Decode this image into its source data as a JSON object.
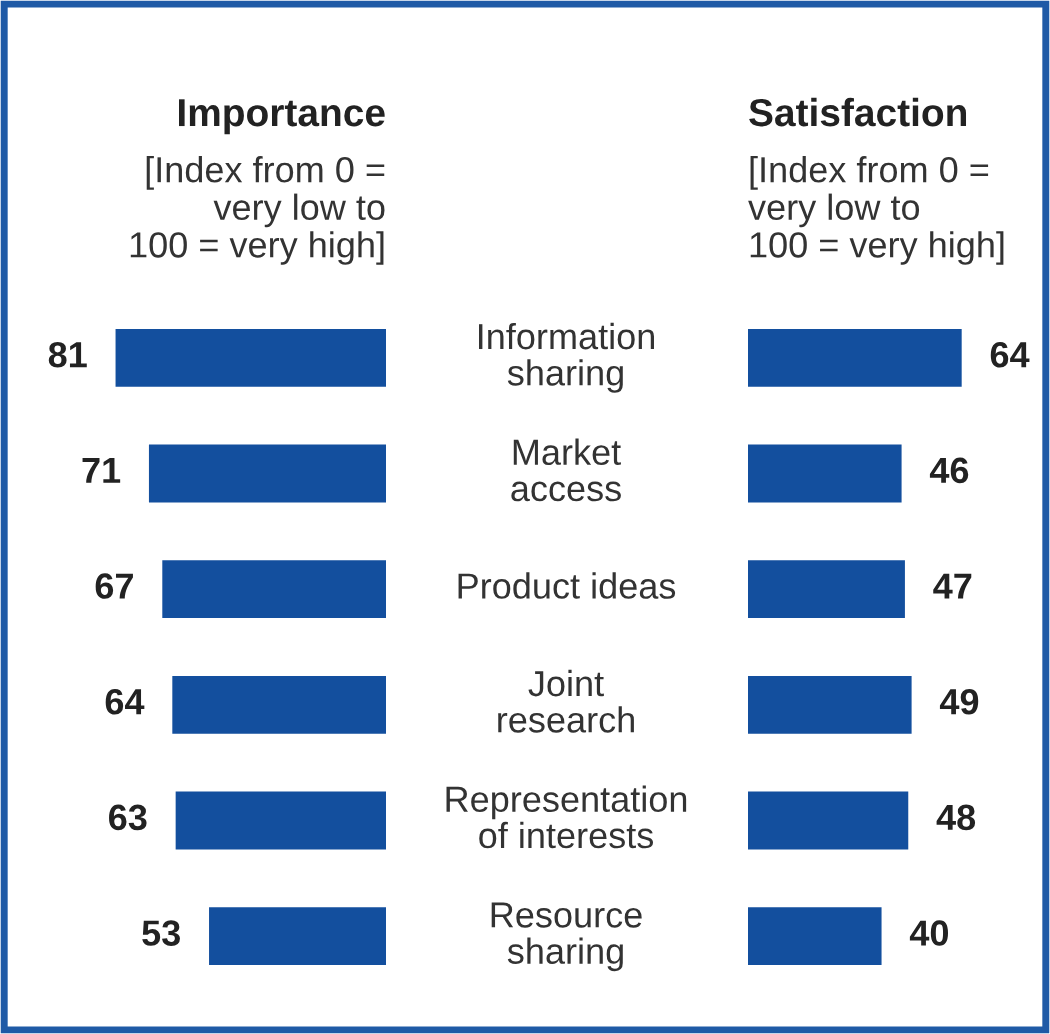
{
  "chart_data": [
    {
      "type": "bar",
      "orientation": "horizontal",
      "title": "Importance",
      "subtitle": "[Index from 0 =\nvery low to\n100 = very high]",
      "categories": [
        "Information\nsharing",
        "Market\naccess",
        "Product ideas",
        "Joint\nresearch",
        "Representation\nof interests",
        "Resource\nsharing"
      ],
      "values": [
        81,
        71,
        67,
        64,
        63,
        53
      ],
      "color": "#134f9e",
      "data_labels": true
    },
    {
      "type": "bar",
      "orientation": "horizontal",
      "title": "Satisfaction",
      "subtitle": "[Index from 0 =\nvery low to\n100 = very high]",
      "categories": [
        null,
        null,
        null,
        null,
        null,
        null
      ],
      "values": [
        64,
        46,
        47,
        49,
        48,
        40
      ],
      "color": "#134f9e",
      "data_labels": true
    }
  ]
}
